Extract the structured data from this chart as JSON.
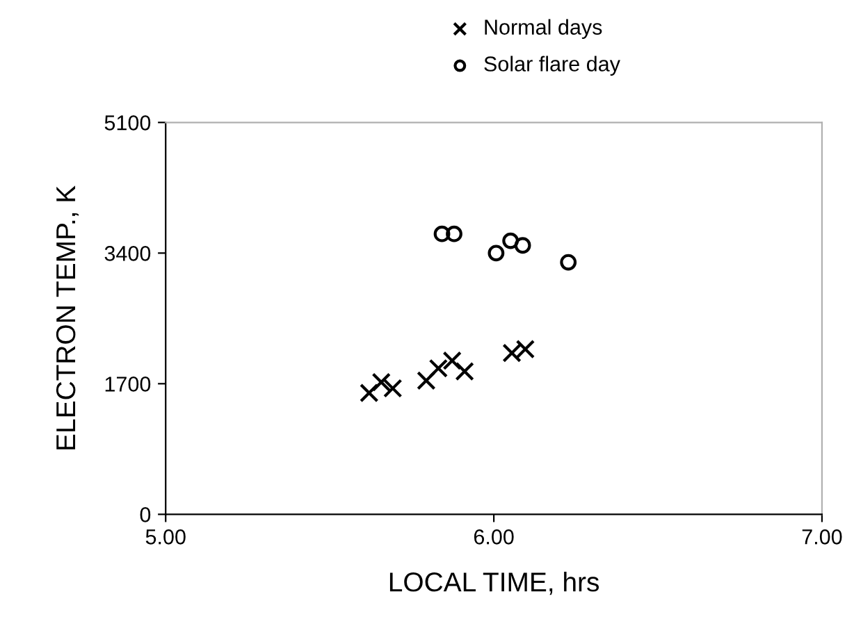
{
  "chart_data": {
    "type": "scatter",
    "xlabel": "LOCAL TIME, hrs",
    "ylabel": "ELECTRON TEMP., K",
    "xlim": [
      5,
      7
    ],
    "xticks": [
      {
        "value": 5,
        "label": "5.00"
      },
      {
        "value": 6,
        "label": "6.00"
      },
      {
        "value": 7,
        "label": "7.00"
      }
    ],
    "ylim": [
      0,
      5100
    ],
    "yticks": [
      0,
      1700,
      3400,
      5100
    ],
    "grid": false,
    "legend": "top",
    "series": [
      {
        "name": "Normal days",
        "color": "#000000",
        "marker": "cross",
        "x": [
          5.62,
          5.657,
          5.692,
          5.794,
          5.831,
          5.873,
          5.911,
          6.055,
          6.096
        ],
        "values": [
          1580,
          1720,
          1640,
          1740,
          1900,
          2000,
          1860,
          2100,
          2150
        ]
      },
      {
        "name": "Solar flare day",
        "color": "#000000",
        "marker": "circle",
        "x": [
          5.842,
          5.879,
          6.007,
          6.051,
          6.088,
          6.227
        ],
        "values": [
          3650,
          3650,
          3400,
          3560,
          3500,
          3280
        ]
      }
    ]
  }
}
